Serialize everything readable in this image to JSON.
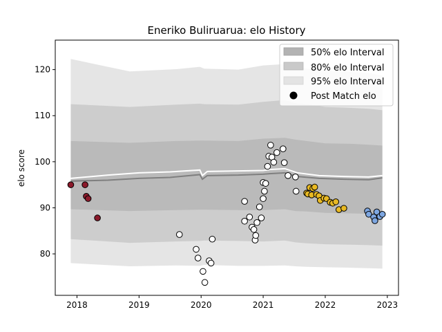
{
  "chart_data": {
    "type": "scatter",
    "title": "Eneriko Buliruarua: elo History",
    "xlabel": "",
    "ylabel": "elo score",
    "xlim": [
      2017.65,
      2023.18
    ],
    "ylim": [
      71,
      126.4
    ],
    "x_ticks": [
      2018,
      2019,
      2020,
      2021,
      2022,
      2023
    ],
    "y_ticks": [
      80,
      90,
      100,
      110,
      120
    ],
    "legend_position": "top-right",
    "legend": [
      {
        "label": "50% elo Interval",
        "kind": "band",
        "color": "#b3b3b3"
      },
      {
        "label": "80% elo Interval",
        "kind": "band",
        "color": "#c9c9c9"
      },
      {
        "label": "95% elo Interval",
        "kind": "band",
        "color": "#e3e3e3"
      },
      {
        "label": "Post Match elo",
        "kind": "marker",
        "color": "#000000"
      }
    ],
    "bands": {
      "x": [
        2017.9,
        2018.85,
        2019.6,
        2019.98,
        2020.05,
        2020.6,
        2021.0,
        2021.35,
        2021.52,
        2021.7,
        2022.0,
        2022.4,
        2022.7,
        2022.92
      ],
      "p95": {
        "lower": [
          78,
          77.3,
          77.5,
          77.4,
          77.6,
          77.4,
          77.4,
          77.5,
          77.3,
          77.2,
          77.1,
          77.0,
          76.9,
          76.8
        ],
        "upper": [
          122.3,
          119.6,
          120.1,
          120.6,
          120.2,
          120.0,
          120.9,
          121.2,
          120.6,
          120.2,
          119.8,
          119.5,
          119.3,
          118.7
        ]
      },
      "p80": {
        "lower": [
          83.2,
          82.4,
          82.7,
          82.8,
          82.9,
          82.8,
          82.7,
          82.9,
          82.5,
          82.3,
          82.1,
          82.0,
          81.9,
          81.8
        ],
        "upper": [
          112.5,
          111.9,
          112.4,
          112.6,
          112.5,
          112.4,
          113.0,
          113.4,
          112.7,
          112.5,
          111.9,
          111.7,
          111.5,
          111.2
        ]
      },
      "p50": {
        "lower": [
          89.7,
          89.3,
          89.5,
          89.6,
          89.6,
          89.5,
          89.5,
          89.7,
          89.3,
          89.2,
          88.9,
          88.8,
          88.7,
          88.6
        ],
        "upper": [
          104.5,
          104.1,
          104.5,
          104.6,
          104.6,
          104.5,
          105.0,
          105.2,
          104.8,
          104.5,
          104.0,
          103.9,
          103.7,
          103.5
        ]
      }
    },
    "lines": {
      "x": [
        2017.9,
        2018.5,
        2019.0,
        2019.5,
        2019.98,
        2020.02,
        2020.1,
        2020.6,
        2021.0,
        2021.1,
        2021.35,
        2021.55,
        2021.9,
        2022.3,
        2022.7,
        2022.92
      ],
      "mean": [
        95.8,
        96.0,
        96.4,
        96.6,
        97.2,
        96.2,
        97.0,
        97.1,
        97.3,
        97.4,
        97.6,
        96.8,
        96.4,
        96.2,
        96.1,
        96.5
      ],
      "post": [
        96.4,
        97.1,
        97.6,
        97.8,
        98.2,
        97.0,
        97.9,
        98.0,
        98.1,
        98.3,
        98.5,
        97.6,
        97.0,
        96.8,
        96.7,
        97.0
      ]
    },
    "series": [
      {
        "color": "#8b1a2b",
        "points": [
          [
            2017.9,
            95.0
          ],
          [
            2018.13,
            95.0
          ],
          [
            2018.15,
            92.5
          ],
          [
            2018.18,
            92.0
          ],
          [
            2018.33,
            87.8
          ]
        ]
      },
      {
        "color": "#ffffff",
        "points": [
          [
            2019.65,
            84.2
          ],
          [
            2019.92,
            81.0
          ],
          [
            2019.95,
            79.1
          ],
          [
            2020.03,
            76.2
          ],
          [
            2020.06,
            73.8
          ],
          [
            2020.13,
            78.5
          ],
          [
            2020.16,
            78.0
          ],
          [
            2020.18,
            83.2
          ],
          [
            2020.7,
            91.4
          ],
          [
            2020.7,
            87.1
          ],
          [
            2020.78,
            88.0
          ],
          [
            2020.82,
            85.8
          ],
          [
            2020.85,
            85.3
          ],
          [
            2020.87,
            83.0
          ],
          [
            2020.88,
            84.0
          ],
          [
            2020.9,
            86.8
          ],
          [
            2020.94,
            90.2
          ],
          [
            2020.97,
            87.8
          ],
          [
            2021.0,
            92.0
          ],
          [
            2021.0,
            95.5
          ],
          [
            2021.02,
            93.6
          ],
          [
            2021.04,
            95.3
          ],
          [
            2021.07,
            99.0
          ],
          [
            2021.09,
            101.2
          ],
          [
            2021.12,
            103.6
          ],
          [
            2021.14,
            101.0
          ],
          [
            2021.17,
            99.9
          ],
          [
            2021.22,
            102.0
          ],
          [
            2021.32,
            102.8
          ],
          [
            2021.34,
            99.8
          ],
          [
            2021.4,
            97.0
          ],
          [
            2021.52,
            96.7
          ],
          [
            2021.53,
            93.6
          ]
        ]
      },
      {
        "color": "#e8b923",
        "points": [
          [
            2021.7,
            93.2
          ],
          [
            2021.72,
            93.0
          ],
          [
            2021.75,
            94.4
          ],
          [
            2021.78,
            92.8
          ],
          [
            2021.8,
            94.2
          ],
          [
            2021.83,
            94.5
          ],
          [
            2021.86,
            92.9
          ],
          [
            2021.9,
            92.6
          ],
          [
            2021.92,
            91.6
          ],
          [
            2021.98,
            92.1
          ],
          [
            2022.02,
            92.0
          ],
          [
            2022.08,
            91.2
          ],
          [
            2022.12,
            91.0
          ],
          [
            2022.17,
            91.3
          ],
          [
            2022.22,
            89.6
          ],
          [
            2022.3,
            89.9
          ]
        ]
      },
      {
        "color": "#7da6e0",
        "points": [
          [
            2022.68,
            89.3
          ],
          [
            2022.7,
            88.6
          ],
          [
            2022.78,
            88.0
          ],
          [
            2022.8,
            87.2
          ],
          [
            2022.83,
            89.1
          ],
          [
            2022.88,
            88.1
          ],
          [
            2022.92,
            88.6
          ]
        ]
      }
    ]
  }
}
